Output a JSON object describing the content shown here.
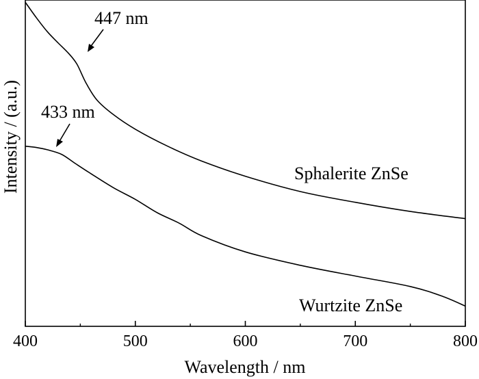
{
  "chart_data": {
    "type": "line",
    "xlabel": "Wavelength / nm",
    "ylabel": "Intensity / (a.u.)",
    "xlim": [
      400,
      800
    ],
    "ylim": [
      0,
      1
    ],
    "xticks": [
      400,
      500,
      600,
      700,
      800
    ],
    "grid": false,
    "y_tick_labels": false,
    "series": [
      {
        "name": "Sphalerite ZnSe",
        "x": [
          400,
          410,
          420,
          430,
          440,
          447,
          455,
          465,
          480,
          500,
          530,
          560,
          600,
          650,
          700,
          750,
          800
        ],
        "y": [
          0.993,
          0.946,
          0.903,
          0.868,
          0.834,
          0.803,
          0.747,
          0.694,
          0.649,
          0.604,
          0.551,
          0.507,
          0.46,
          0.413,
          0.38,
          0.352,
          0.33
        ]
      },
      {
        "name": "Wurtzite ZnSe",
        "x": [
          400,
          410,
          420,
          433,
          445,
          460,
          480,
          500,
          520,
          540,
          560,
          600,
          650,
          700,
          750,
          780,
          800
        ],
        "y": [
          0.552,
          0.548,
          0.541,
          0.527,
          0.5,
          0.467,
          0.425,
          0.389,
          0.348,
          0.316,
          0.278,
          0.228,
          0.187,
          0.154,
          0.122,
          0.091,
          0.062
        ]
      }
    ],
    "annotations": [
      {
        "text": "447 nm",
        "x": 447,
        "series": "Sphalerite ZnSe"
      },
      {
        "text": "433 nm",
        "x": 433,
        "series": "Wurtzite ZnSe"
      }
    ]
  }
}
